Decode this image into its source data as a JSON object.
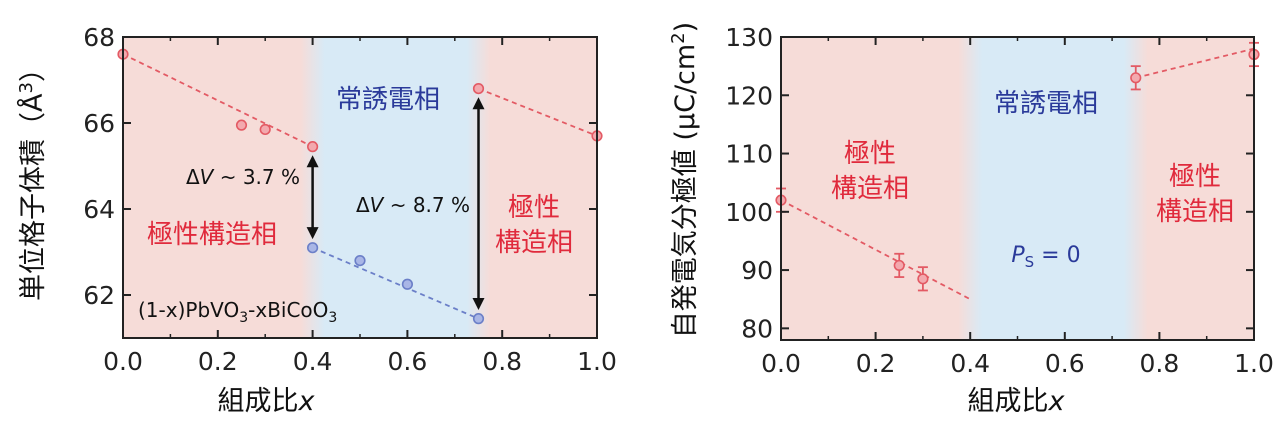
{
  "chart_data": [
    {
      "type": "scatter",
      "xlabel": "組成比",
      "xlabel_var": "x",
      "ylabel": "単位格子体積（Å",
      "ylabel_sup": "3",
      "ylabel_end": "）",
      "xlim": [
        0,
        1.0
      ],
      "ylim": [
        61,
        68
      ],
      "xticks": [
        "0.0",
        "0.2",
        "0.4",
        "0.6",
        "0.8",
        "1.0"
      ],
      "yticks": [
        "62",
        "64",
        "66",
        "68"
      ],
      "regions": [
        {
          "from": 0,
          "to": 0.4,
          "color": "#f6dcd8"
        },
        {
          "from": 0.4,
          "to": 0.75,
          "color": "#d8eaf6"
        },
        {
          "from": 0.75,
          "to": 1.0,
          "color": "#f6dcd8"
        }
      ],
      "series": [
        {
          "color": "#e35a64",
          "points": [
            [
              0,
              67.6
            ],
            [
              0.25,
              65.95
            ],
            [
              0.3,
              65.85
            ],
            [
              0.4,
              65.45
            ],
            [
              0.75,
              66.8
            ],
            [
              1.0,
              65.7
            ]
          ]
        },
        {
          "color": "#6b7fc8",
          "points": [
            [
              0.4,
              63.1
            ],
            [
              0.5,
              62.8
            ],
            [
              0.6,
              62.25
            ],
            [
              0.75,
              61.45
            ]
          ]
        }
      ],
      "fit_lines": [
        {
          "color": "#e35a64",
          "from": [
            0,
            67.6
          ],
          "to": [
            0.4,
            65.45
          ]
        },
        {
          "color": "#e35a64",
          "from": [
            0.75,
            66.8
          ],
          "to": [
            1.0,
            65.7
          ]
        },
        {
          "color": "#6b7fc8",
          "from": [
            0.4,
            63.1
          ],
          "to": [
            0.75,
            61.45
          ]
        }
      ],
      "arrows": [
        {
          "x": 0.4,
          "y1": 65.25,
          "y2": 63.3
        },
        {
          "x": 0.75,
          "y1": 66.6,
          "y2": 61.65
        }
      ],
      "annotations": {
        "para_label": "常誘電相",
        "polar_left": "極性構造相",
        "polar_right_line1": "極性",
        "polar_right_line2": "構造相",
        "dv1_prefix": "Δ",
        "dv1_var": "V",
        "dv1_value": " ~ 3.7 %",
        "dv2_prefix": "Δ",
        "dv2_var": "V",
        "dv2_value": " ~ 8.7 %",
        "formula_a": "(1-x)PbVO",
        "formula_sub1": "3",
        "formula_b": "-xBiCoO",
        "formula_sub2": "3"
      }
    },
    {
      "type": "scatter",
      "xlabel": "組成比",
      "xlabel_var": "x",
      "ylabel": "自発電気分極値 (μC/cm",
      "ylabel_sup": "2",
      "ylabel_end": ")",
      "xlim": [
        0,
        1.0
      ],
      "ylim": [
        78,
        130
      ],
      "xticks": [
        "0.0",
        "0.2",
        "0.4",
        "0.6",
        "0.8",
        "1.0"
      ],
      "yticks": [
        "80",
        "90",
        "100",
        "110",
        "120",
        "130"
      ],
      "regions": [
        {
          "from": 0,
          "to": 0.4,
          "color": "#f6dcd8"
        },
        {
          "from": 0.4,
          "to": 0.75,
          "color": "#d8eaf6"
        },
        {
          "from": 0.75,
          "to": 1.0,
          "color": "#f6dcd8"
        }
      ],
      "series": [
        {
          "color": "#e35a64",
          "points": [
            [
              0,
              102
            ],
            [
              0.25,
              90.8
            ],
            [
              0.3,
              88.5
            ],
            [
              0.75,
              123
            ],
            [
              1.0,
              127
            ]
          ],
          "errors": [
            2,
            2,
            2,
            2,
            2
          ]
        }
      ],
      "fit_lines": [
        {
          "color": "#e35a64",
          "from": [
            0,
            102
          ],
          "to": [
            0.4,
            85
          ]
        },
        {
          "color": "#e35a64",
          "from": [
            0.75,
            123
          ],
          "to": [
            1.0,
            128
          ]
        }
      ],
      "annotations": {
        "polar_left_line1": "極性",
        "polar_left_line2": "構造相",
        "para_label": "常誘電相",
        "polar_right_line1": "極性",
        "polar_right_line2": "構造相",
        "ps_var": "P",
        "ps_sub": "S",
        "ps_value": " = 0"
      }
    }
  ]
}
